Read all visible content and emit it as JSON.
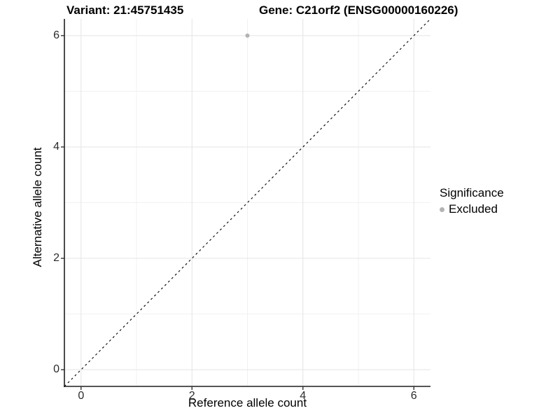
{
  "header": {
    "title_left": "Variant: 21:45751435",
    "title_right": "Gene: C21orf2 (ENSG00000160226)"
  },
  "legend": {
    "title": "Significance",
    "items": [
      {
        "label": "Excluded",
        "color": "#b3b3b3"
      }
    ]
  },
  "chart_data": {
    "type": "scatter",
    "titles": [
      "Variant: 21:45751435",
      "Gene: C21orf2 (ENSG00000160226)"
    ],
    "xlabel": "Reference allele count",
    "ylabel": "Alternative allele count",
    "xlim": [
      -0.3,
      6.3
    ],
    "ylim": [
      -0.3,
      6.3
    ],
    "xticks": [
      0,
      2,
      4,
      6
    ],
    "yticks": [
      0,
      2,
      4,
      6
    ],
    "minor_gridlines": [
      1,
      3,
      5
    ],
    "grid": "on",
    "legend_position": "right",
    "series": [
      {
        "name": "Excluded",
        "color": "#b3b3b3",
        "points": [
          {
            "x": 3,
            "y": 6
          }
        ]
      }
    ],
    "reference_line": {
      "equation": "y = x",
      "style": "dashed",
      "color": "#000000",
      "from": [
        -0.3,
        -0.3
      ],
      "to": [
        6.3,
        6.3
      ]
    }
  },
  "colors": {
    "background": "#ffffff",
    "grid_major": "#e4e4e4",
    "grid_minor": "#f1f1f1",
    "axis_line": "#1f1f1f",
    "tick_mark": "#333333",
    "tick_label": "#2b2b2b",
    "point": "#b3b3b3"
  }
}
